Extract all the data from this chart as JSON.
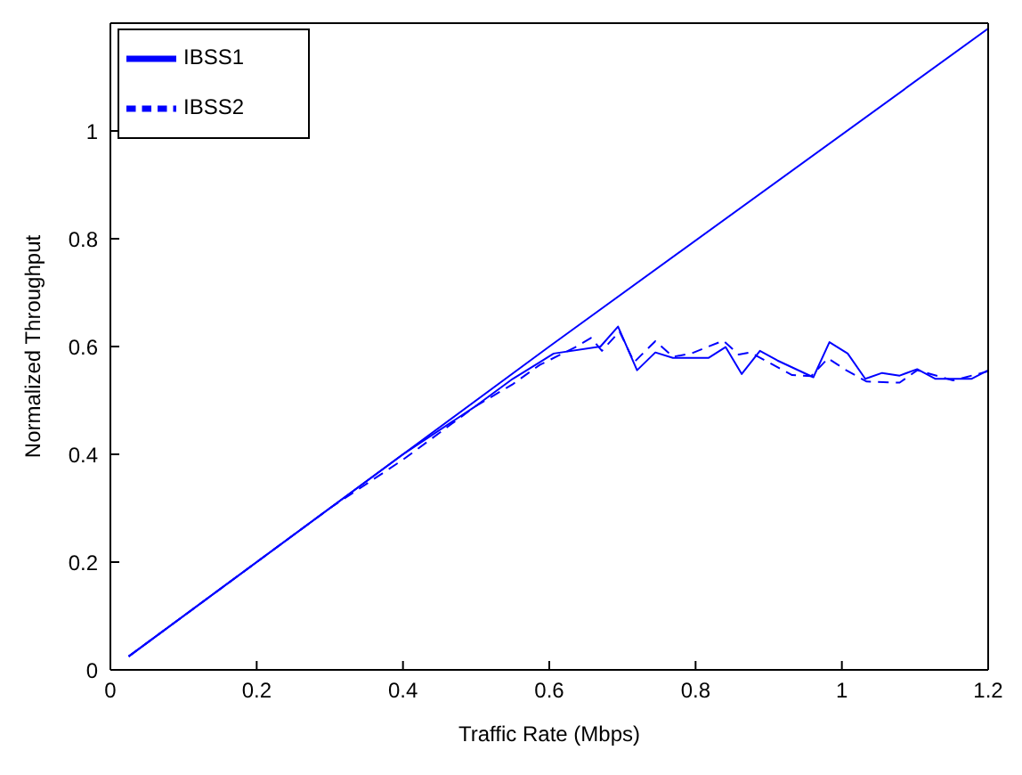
{
  "chart_data": {
    "type": "line",
    "xlabel": "Traffic Rate (Mbps)",
    "ylabel": "Normalized Throughput",
    "xlim": [
      0,
      1.2
    ],
    "ylim": [
      0,
      1.2
    ],
    "xticks": [
      0,
      0.2,
      0.4,
      0.6,
      0.8,
      1,
      1.2
    ],
    "yticks": [
      0,
      0.2,
      0.4,
      0.6,
      0.8,
      1
    ],
    "grid": false,
    "legend": "top left",
    "marker": "none",
    "series": [
      {
        "name": "IBSS1",
        "color": "#0000ff",
        "line_style": "solid",
        "x": [
          0.025,
          0.1,
          0.2,
          0.3,
          0.4,
          0.5,
          0.55,
          0.587,
          0.606,
          0.67,
          0.694,
          0.72,
          0.745,
          0.769,
          0.818,
          0.841,
          0.863,
          0.888,
          0.912,
          0.961,
          0.983,
          1.008,
          1.032,
          1.055,
          1.079,
          1.103,
          1.128,
          1.177,
          1.2
        ],
        "values": [
          0.025,
          0.1,
          0.2,
          0.3,
          0.4,
          0.49,
          0.54,
          0.571,
          0.587,
          0.6,
          0.637,
          0.556,
          0.589,
          0.579,
          0.579,
          0.599,
          0.549,
          0.592,
          0.574,
          0.543,
          0.608,
          0.587,
          0.54,
          0.551,
          0.546,
          0.558,
          0.54,
          0.54,
          0.556
        ]
      },
      {
        "name": "IBSS2",
        "color": "#0000ff",
        "line_style": "dashed",
        "x": [
          0.025,
          0.1,
          0.2,
          0.3,
          0.4,
          0.5,
          0.55,
          0.587,
          0.636,
          0.657,
          0.672,
          0.696,
          0.716,
          0.745,
          0.769,
          0.794,
          0.838,
          0.859,
          0.875,
          0.932,
          0.958,
          0.981,
          1.006,
          1.034,
          1.079,
          1.103,
          1.152,
          1.2
        ],
        "values": [
          0.025,
          0.1,
          0.2,
          0.3,
          0.39,
          0.49,
          0.53,
          0.566,
          0.599,
          0.616,
          0.592,
          0.628,
          0.571,
          0.61,
          0.581,
          0.587,
          0.611,
          0.585,
          0.589,
          0.547,
          0.545,
          0.578,
          0.556,
          0.535,
          0.533,
          0.556,
          0.537,
          0.554
        ]
      },
      {
        "color": "#0000ff",
        "line_style": "solid",
        "x": [
          0.025,
          0.6,
          1.2
        ],
        "values": [
          0.025,
          0.6,
          1.19
        ]
      }
    ]
  }
}
